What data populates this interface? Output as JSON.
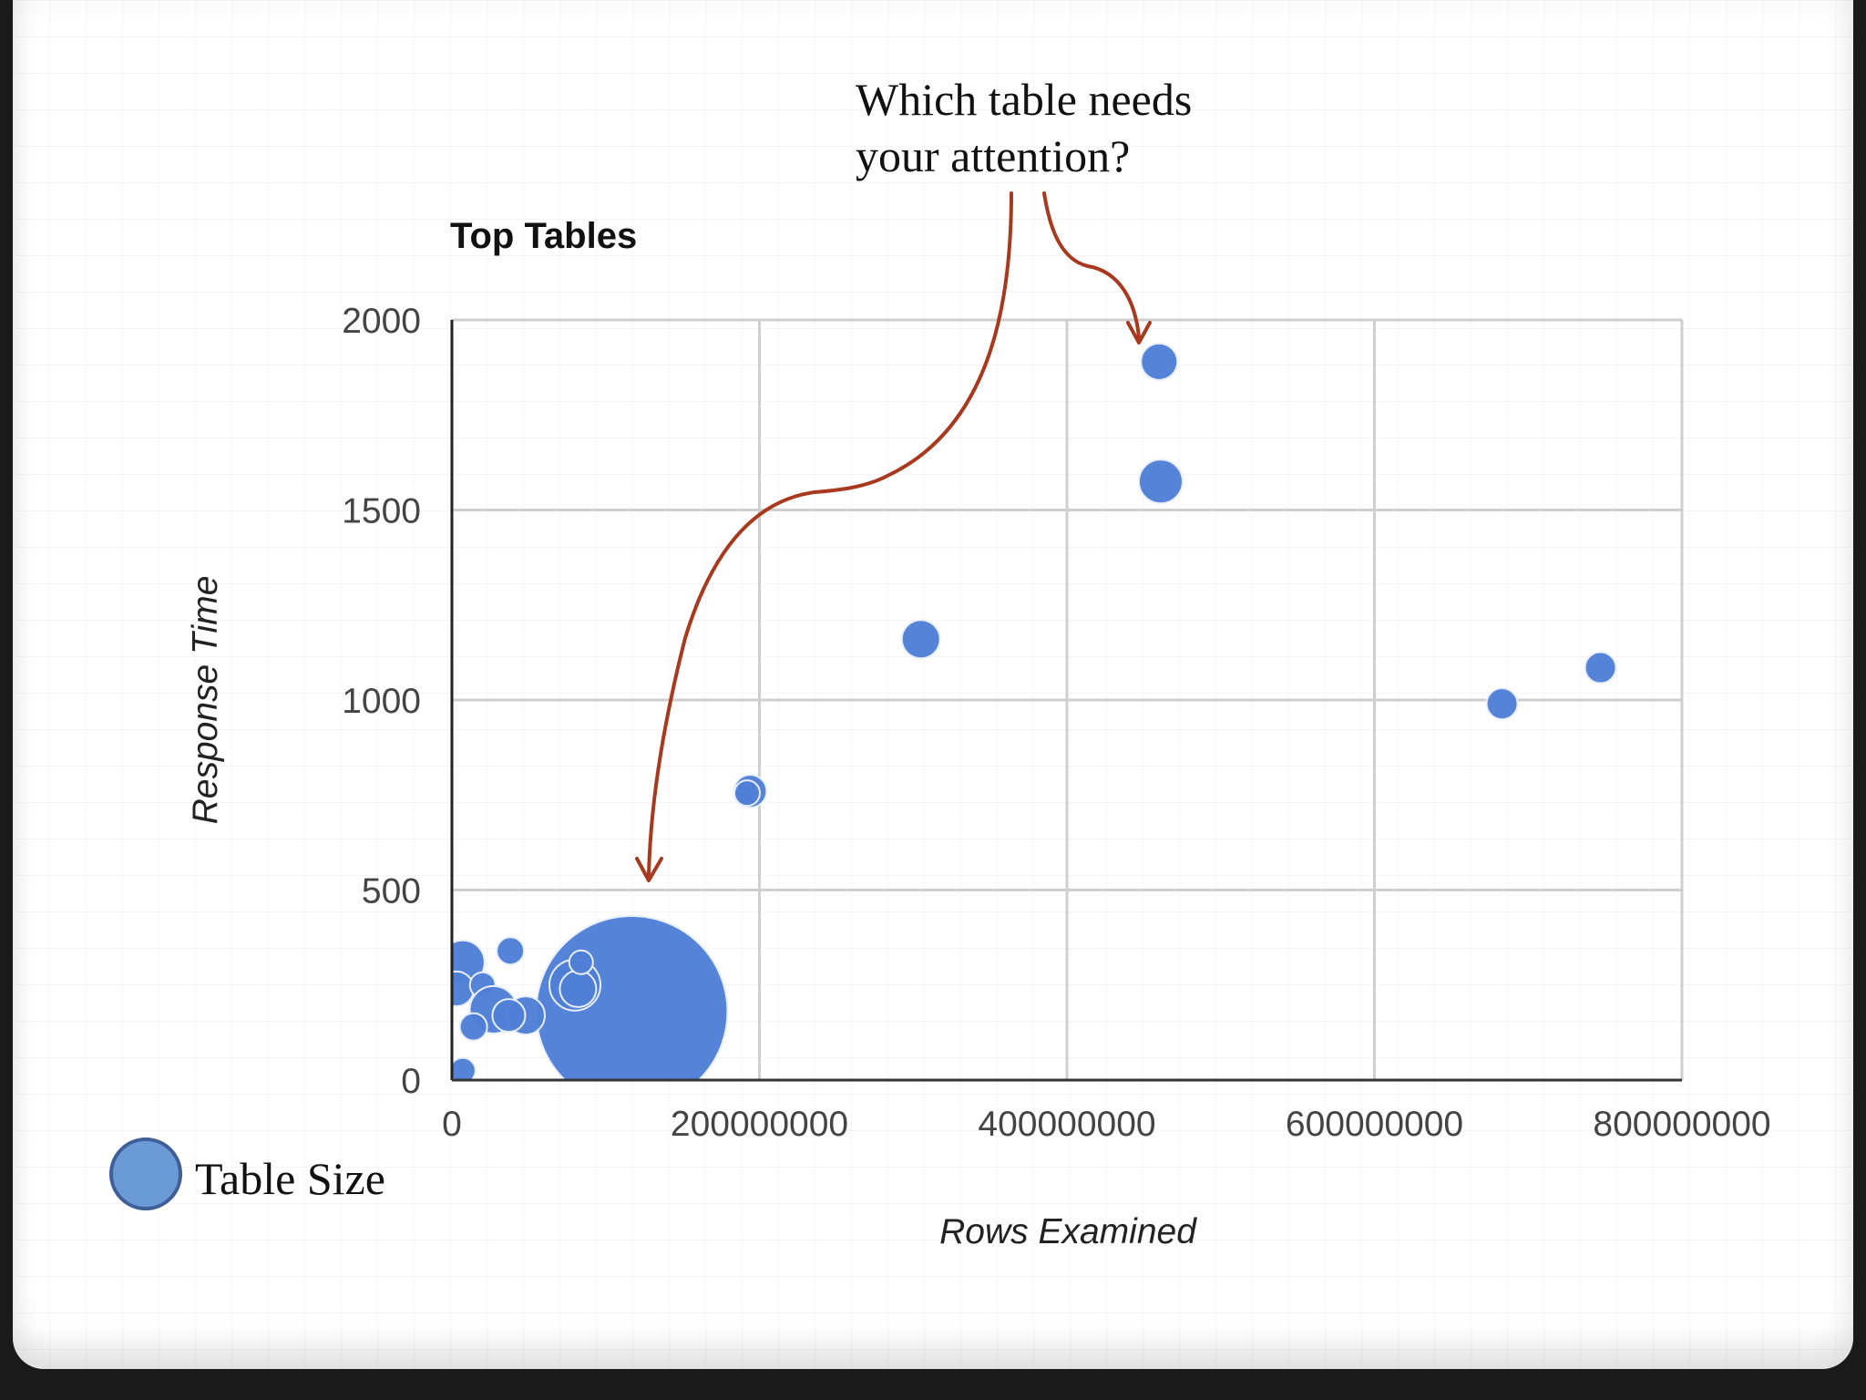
{
  "annotation": {
    "lines": [
      "Which table needs",
      "your attention?"
    ],
    "arrow_color": "#a8391f"
  },
  "legend": {
    "label": "Table Size",
    "color": "#6b9bd6",
    "border": "#3f5f99"
  },
  "chart_data": {
    "type": "scatter",
    "subtype": "bubble",
    "title": "Top Tables",
    "xlabel": "Rows Examined",
    "ylabel": "Response Time",
    "xlim": [
      0,
      800000000
    ],
    "ylim": [
      0,
      2000
    ],
    "x_ticks": [
      0,
      200000000,
      400000000,
      600000000,
      800000000
    ],
    "x_tick_labels": [
      "0",
      "200000000",
      "400000000",
      "600000000",
      "800000000"
    ],
    "y_ticks": [
      0,
      500,
      1000,
      1500,
      2000
    ],
    "y_tick_labels": [
      "0",
      "500",
      "1000",
      "1500",
      "2000"
    ],
    "grid": true,
    "marker_color": "#4f7fd6",
    "points": [
      {
        "x": 460000000,
        "y": 1890,
        "size": 20
      },
      {
        "x": 461000000,
        "y": 1575,
        "size": 24
      },
      {
        "x": 305000000,
        "y": 1160,
        "size": 21
      },
      {
        "x": 683000000,
        "y": 990,
        "size": 17
      },
      {
        "x": 747000000,
        "y": 1085,
        "size": 17
      },
      {
        "x": 194000000,
        "y": 760,
        "size": 18
      },
      {
        "x": 192000000,
        "y": 755,
        "size": 14
      },
      {
        "x": 117000000,
        "y": 180,
        "size": 105
      },
      {
        "x": 80000000,
        "y": 250,
        "size": 28
      },
      {
        "x": 82000000,
        "y": 240,
        "size": 20
      },
      {
        "x": 84000000,
        "y": 310,
        "size": 13
      },
      {
        "x": 7000000,
        "y": 310,
        "size": 24
      },
      {
        "x": 3000000,
        "y": 240,
        "size": 19
      },
      {
        "x": 20000000,
        "y": 250,
        "size": 14
      },
      {
        "x": 27000000,
        "y": 185,
        "size": 26
      },
      {
        "x": 48000000,
        "y": 170,
        "size": 21
      },
      {
        "x": 37000000,
        "y": 170,
        "size": 18
      },
      {
        "x": 14000000,
        "y": 140,
        "size": 15
      },
      {
        "x": 38000000,
        "y": 340,
        "size": 15
      },
      {
        "x": 7000000,
        "y": 25,
        "size": 14
      }
    ]
  }
}
